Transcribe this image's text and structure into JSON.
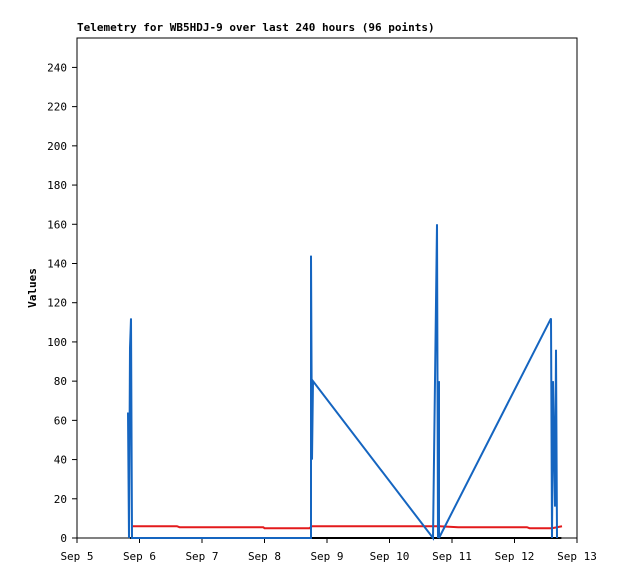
{
  "chart_data": {
    "type": "line",
    "title": "Telemetry for WB5HDJ-9 over last 240 hours (96 points)",
    "y_label": "Values",
    "xlim": [
      5,
      13
    ],
    "xticks": [
      {
        "value": 5,
        "label": "Sep 5"
      },
      {
        "value": 6,
        "label": "Sep 6"
      },
      {
        "value": 7,
        "label": "Sep 7"
      },
      {
        "value": 8,
        "label": "Sep 8"
      },
      {
        "value": 9,
        "label": "Sep 9"
      },
      {
        "value": 10,
        "label": "Sep 10"
      },
      {
        "value": 11,
        "label": "Sep 11"
      },
      {
        "value": 12,
        "label": "Sep 12"
      },
      {
        "value": 13,
        "label": "Sep 13"
      }
    ],
    "ylim": [
      0,
      255
    ],
    "yticks": [
      0,
      20,
      40,
      60,
      80,
      100,
      120,
      140,
      160,
      180,
      200,
      220,
      240
    ],
    "series": [
      {
        "color": "#000000",
        "x": [
          5.85,
          12.75
        ],
        "values": [
          0,
          0
        ]
      },
      {
        "color": "#e31a1c",
        "x": [
          5.88,
          6.6,
          6.64,
          7.98,
          8.0,
          8.72,
          8.76,
          10.8,
          11.1,
          12.2,
          12.24,
          12.6,
          12.76
        ],
        "values": [
          6,
          6,
          5.5,
          5.5,
          5,
          5,
          6,
          6,
          5.5,
          5.5,
          5,
          5,
          6
        ]
      },
      {
        "color": "#1565c0",
        "x": [
          5.816,
          5.832,
          5.848,
          5.864,
          5.88,
          8.744,
          8.744,
          8.76,
          8.776,
          10.696,
          10.76,
          10.776,
          10.792,
          10.792,
          12.584,
          12.6,
          12.616,
          12.632,
          12.648,
          12.664,
          12.68
        ],
        "values": [
          64,
          0,
          97,
          112,
          0,
          0,
          144,
          40,
          80,
          0,
          160,
          0,
          80,
          0,
          112,
          0,
          80,
          48,
          16,
          96,
          0
        ]
      }
    ]
  }
}
